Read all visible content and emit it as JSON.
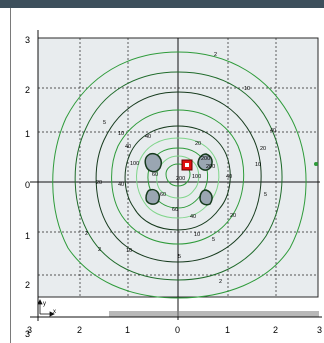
{
  "window": {
    "title": ""
  },
  "plot": {
    "y_ticks": [
      "3",
      "2",
      "1",
      "0",
      "1",
      "2",
      "3"
    ],
    "x_ticks": [
      "3",
      "2",
      "1",
      "0",
      "1",
      "2",
      "3"
    ],
    "axis_glyph": {
      "y": "y",
      "x": "x"
    },
    "contour_labels": [
      "2",
      "5",
      "10",
      "20",
      "40",
      "60",
      "100",
      "200"
    ],
    "colors": {
      "panel": "#e8ecee",
      "dark": "#163a1d",
      "green": "#2e9b3a",
      "light": "#7fd58a",
      "hot": "#e01010"
    }
  }
}
